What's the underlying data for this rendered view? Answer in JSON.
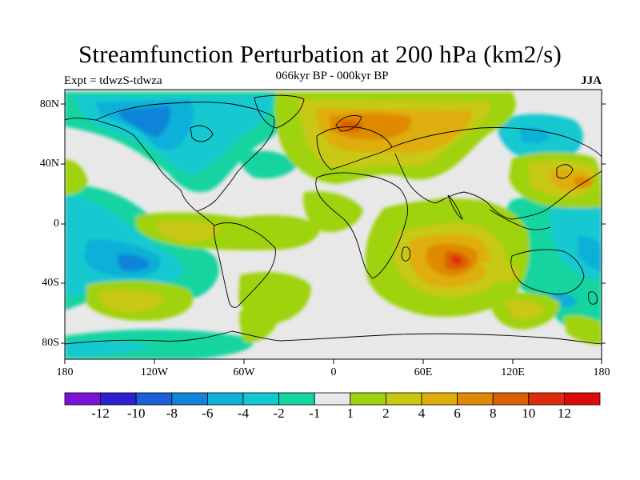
{
  "header": {
    "title": "Streamfunction Perturbation at 200 hPa (km2/s)",
    "subtitle": "066kyr BP - 000kyr BP",
    "left_label": "Expt = tdwzS-tdwza",
    "right_label": "JJA"
  },
  "axes": {
    "lat_labels": [
      "80N",
      "40N",
      "0",
      "40S",
      "80S"
    ],
    "lon_labels": [
      "180",
      "120W",
      "60W",
      "0",
      "60E",
      "120E",
      "180"
    ]
  },
  "colorbar": {
    "labels": [
      "-12",
      "-10",
      "-8",
      "-6",
      "-4",
      "-2",
      "-1",
      "1",
      "2",
      "4",
      "6",
      "8",
      "10",
      "12"
    ],
    "colors": [
      "#7a12d6",
      "#2c20cf",
      "#1a5fd6",
      "#1184d7",
      "#0fb0d8",
      "#12c9d1",
      "#14d4a0",
      "#e8e8e8",
      "#9fd311",
      "#c8c812",
      "#dfad08",
      "#df8a06",
      "#dc6004",
      "#dd2c0a",
      "#de0a0a"
    ]
  }
}
